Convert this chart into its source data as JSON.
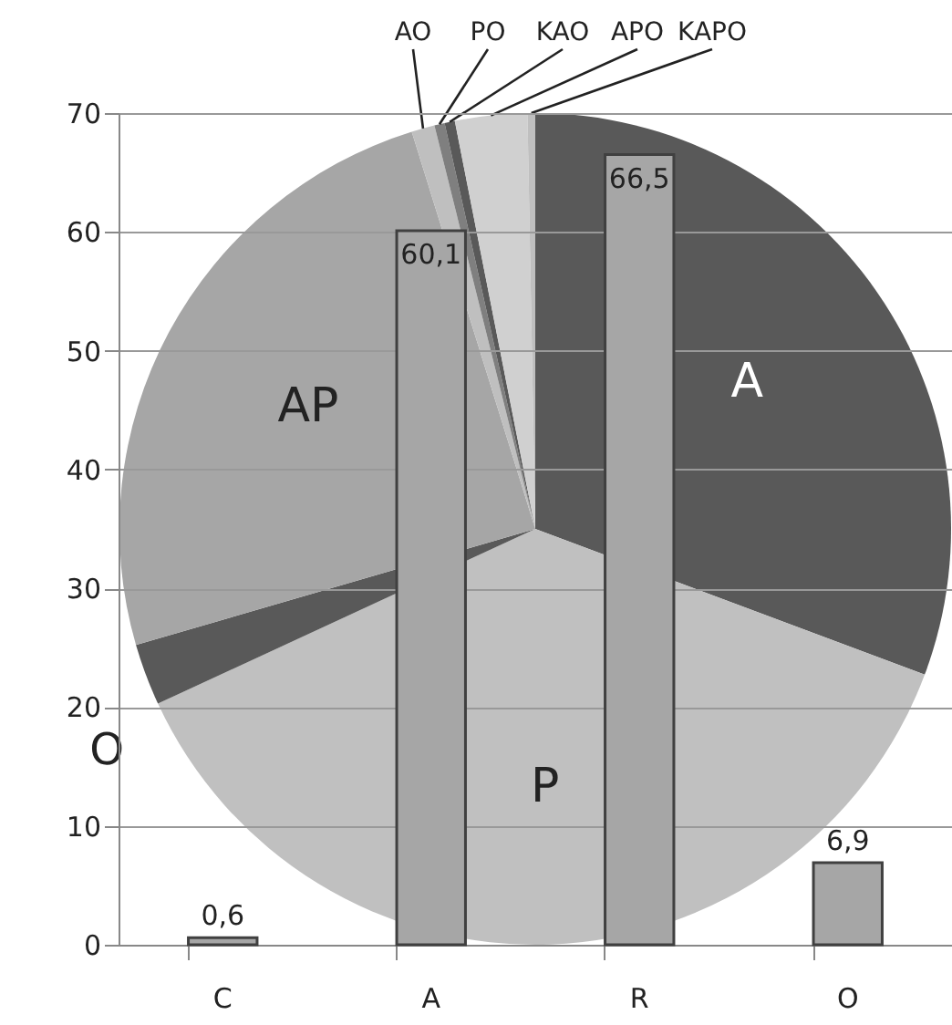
{
  "chart_data": [
    {
      "type": "bar",
      "categories": [
        "C",
        "A",
        "R",
        "O"
      ],
      "values": [
        0.6,
        60.1,
        66.5,
        6.9
      ],
      "color": "#a6a6a6",
      "ylim": [
        0,
        70
      ],
      "yticks": [
        0,
        10,
        20,
        30,
        40,
        50,
        60,
        70
      ],
      "grid": "y",
      "value_labels": [
        "0,6",
        "60,1",
        "66,5",
        "6,9"
      ]
    },
    {
      "type": "pie",
      "categories": [
        "A",
        "P",
        "O",
        "AP",
        "AO",
        "PO",
        "KAO",
        "APO",
        "KAPO"
      ],
      "values": [
        30.7,
        37.4,
        2.4,
        24.7,
        0.9,
        0.4,
        0.4,
        2.8,
        0.3
      ],
      "colors": [
        "#595959",
        "#c0c0c0",
        "#595959",
        "#a6a6a6",
        "#bfbfbf",
        "#7f7f7f",
        "#595959",
        "#d0d0d0",
        "#bfbfbf"
      ]
    }
  ]
}
